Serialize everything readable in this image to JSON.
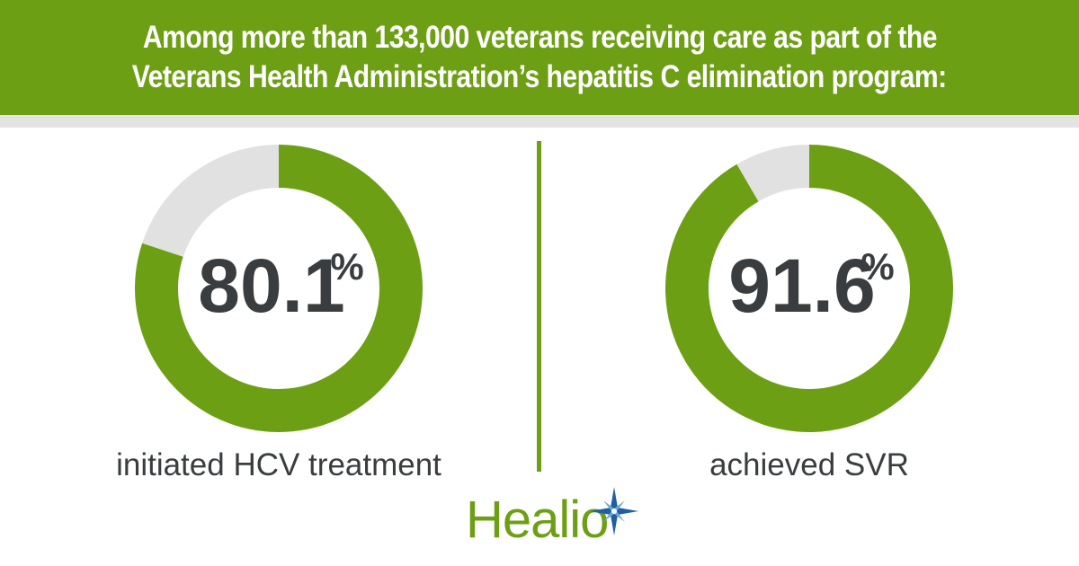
{
  "header": {
    "line1": "Among more than 133,000 veterans receiving care as part of the",
    "line2": "Veterans Health Administration’s hepatitis C elimination program:"
  },
  "chart_data": [
    {
      "type": "pie",
      "variant": "donut",
      "value_label": "80.1",
      "unit": "%",
      "caption": "initiated HCV treatment",
      "slices": [
        {
          "name": "initiated HCV treatment",
          "value": 80.1,
          "color": "#6d9f14"
        },
        {
          "name": "",
          "value": 19.9,
          "color": "#e1e1e1"
        }
      ]
    },
    {
      "type": "pie",
      "variant": "donut",
      "value_label": "91.6",
      "unit": "%",
      "caption": "achieved SVR",
      "slices": [
        {
          "name": "achieved SVR",
          "value": 91.6,
          "color": "#6d9f14"
        },
        {
          "name": "",
          "value": 8.4,
          "color": "#e1e1e1"
        }
      ]
    }
  ],
  "logo": {
    "text": "Healio",
    "icon": "star-compass-icon",
    "color_green": "#6d9f14",
    "color_blue": "#1f5fa3"
  },
  "colors": {
    "accent": "#6d9f14",
    "remainder": "#e1e1e1",
    "text": "#3a3d3f",
    "header_text": "#ffffff"
  }
}
